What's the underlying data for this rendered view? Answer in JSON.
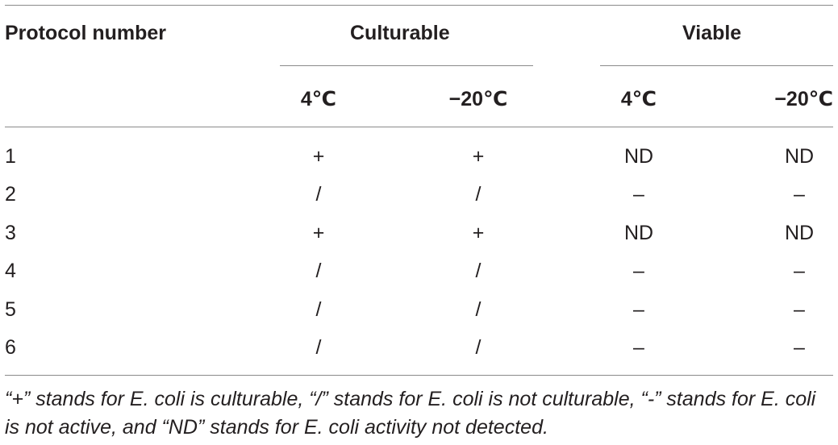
{
  "table": {
    "header": {
      "protocol": "Protocol number",
      "group1": "Culturable",
      "group2": "Viable",
      "sub": [
        "4℃",
        "−20℃",
        "4℃",
        "−20℃"
      ]
    },
    "rows": [
      {
        "protocol": "1",
        "cells": [
          "+",
          "+",
          "ND",
          "ND"
        ]
      },
      {
        "protocol": "2",
        "cells": [
          "/",
          "/",
          "–",
          "–"
        ]
      },
      {
        "protocol": "3",
        "cells": [
          "+",
          "+",
          "ND",
          "ND"
        ]
      },
      {
        "protocol": "4",
        "cells": [
          "/",
          "/",
          "–",
          "–"
        ]
      },
      {
        "protocol": "5",
        "cells": [
          "/",
          "/",
          "–",
          "–"
        ]
      },
      {
        "protocol": "6",
        "cells": [
          "/",
          "/",
          "–",
          "–"
        ]
      }
    ],
    "footnote": "“+” stands for E. coli is culturable, “/” stands for E. coli is not culturable, “-” stands for E. coli is not active, and “ND” stands for E. coli activity not detected."
  }
}
